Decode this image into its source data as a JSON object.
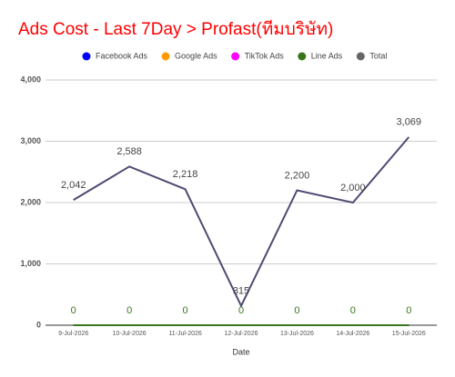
{
  "chart_data": {
    "type": "line",
    "title": "Ads Cost - Last 7Day > Profast(ทีมบริษัท)",
    "x_label": "Date",
    "categories": [
      "9-Jul-2026",
      "10-Jul-2026",
      "11-Jul-2026",
      "12-Jul-2026",
      "13-Jul-2026",
      "14-Jul-2026",
      "15-Jul-2026"
    ],
    "series": [
      {
        "name": "Facebook Ads",
        "color": "#0000ff",
        "values": [
          0,
          0,
          0,
          0,
          0,
          0,
          0
        ]
      },
      {
        "name": "Google Ads",
        "color": "#ff9900",
        "values": [
          0,
          0,
          0,
          0,
          0,
          0,
          0
        ]
      },
      {
        "name": "TikTok Ads",
        "color": "#ff00ff",
        "values": [
          0,
          0,
          0,
          0,
          0,
          0,
          0
        ]
      },
      {
        "name": "Line Ads",
        "color": "#38761d",
        "values": [
          0,
          0,
          0,
          0,
          0,
          0,
          0
        ],
        "data_labels": true
      },
      {
        "name": "Total",
        "color": "#4e4a71",
        "legend_color": "#666666",
        "values": [
          2042,
          2588,
          2218,
          315,
          2200,
          2000,
          3069
        ],
        "value_labels": [
          "2,042",
          "2,588",
          "2,218",
          "315",
          "2,200",
          "2,000",
          "3,069"
        ],
        "data_labels": true
      }
    ],
    "ylim": [
      0,
      4000
    ],
    "yticks": [
      {
        "value": 0,
        "label": "0"
      },
      {
        "value": 1000,
        "label": "1,000"
      },
      {
        "value": 2000,
        "label": "2,000"
      },
      {
        "value": 3000,
        "label": "3,000"
      },
      {
        "value": 4000,
        "label": "4,000"
      }
    ],
    "grid": true,
    "legend": "top"
  }
}
